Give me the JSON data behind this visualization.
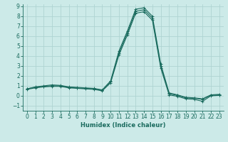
{
  "xlabel": "Humidex (Indice chaleur)",
  "bg_color": "#cceae8",
  "grid_color": "#afd4d2",
  "line_color": "#1a6b5e",
  "xlim": [
    -0.5,
    23.5
  ],
  "ylim": [
    -1.5,
    9.2
  ],
  "xticks": [
    0,
    1,
    2,
    3,
    4,
    5,
    6,
    7,
    8,
    9,
    10,
    11,
    12,
    13,
    14,
    15,
    16,
    17,
    18,
    19,
    20,
    21,
    22,
    23
  ],
  "yticks": [
    -1,
    0,
    1,
    2,
    3,
    4,
    5,
    6,
    7,
    8,
    9
  ],
  "series": [
    [
      0.7,
      0.9,
      1.0,
      1.1,
      1.05,
      0.9,
      0.85,
      0.8,
      0.75,
      0.6,
      1.5,
      4.5,
      6.5,
      8.7,
      8.85,
      8.0,
      3.2,
      0.3,
      0.1,
      -0.15,
      -0.2,
      -0.3,
      0.1,
      0.15
    ],
    [
      0.7,
      0.85,
      0.95,
      1.0,
      1.0,
      0.85,
      0.8,
      0.75,
      0.7,
      0.55,
      1.4,
      4.3,
      6.3,
      8.5,
      8.65,
      7.8,
      3.0,
      0.2,
      0.05,
      -0.2,
      -0.25,
      -0.35,
      0.05,
      0.1
    ],
    [
      0.65,
      0.8,
      0.9,
      0.95,
      0.95,
      0.8,
      0.75,
      0.7,
      0.65,
      0.5,
      1.3,
      4.1,
      6.1,
      8.3,
      8.45,
      7.6,
      2.8,
      0.1,
      -0.05,
      -0.3,
      -0.35,
      -0.55,
      0.0,
      0.05
    ]
  ]
}
